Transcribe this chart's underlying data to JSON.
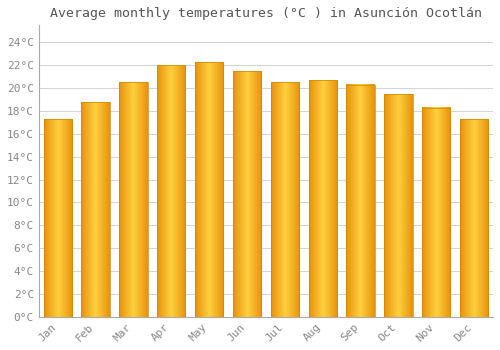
{
  "title": "Average monthly temperatures (°C ) in Asunción Ocotlán",
  "months": [
    "Jan",
    "Feb",
    "Mar",
    "Apr",
    "May",
    "Jun",
    "Jul",
    "Aug",
    "Sep",
    "Oct",
    "Nov",
    "Dec"
  ],
  "temperatures": [
    17.3,
    18.8,
    20.5,
    22.0,
    22.3,
    21.5,
    20.5,
    20.7,
    20.3,
    19.5,
    18.3,
    17.3
  ],
  "bar_color_left": "#E8920A",
  "bar_color_center": "#FFD040",
  "bar_color_right": "#E8920A",
  "bar_edge_color": "#CC8800",
  "ytick_labels": [
    "0°C",
    "2°C",
    "4°C",
    "6°C",
    "8°C",
    "10°C",
    "12°C",
    "14°C",
    "16°C",
    "18°C",
    "20°C",
    "22°C",
    "24°C"
  ],
  "ytick_values": [
    0,
    2,
    4,
    6,
    8,
    10,
    12,
    14,
    16,
    18,
    20,
    22,
    24
  ],
  "ylim": [
    0,
    25.5
  ],
  "background_color": "#FFFFFF",
  "grid_color": "#CCCCCC",
  "title_fontsize": 9.5,
  "tick_fontsize": 8,
  "label_color": "#888888",
  "title_color": "#555555"
}
